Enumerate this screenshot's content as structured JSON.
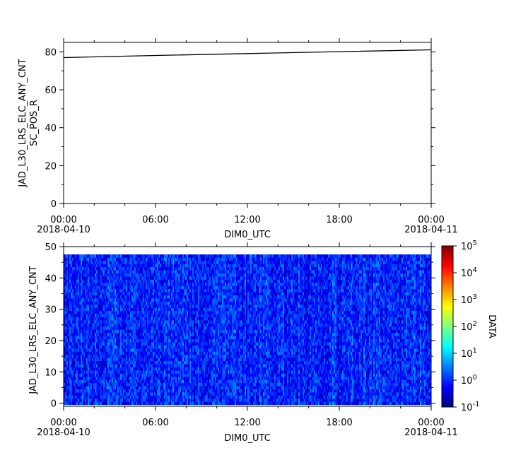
{
  "chart_data": [
    {
      "type": "line",
      "ylabel": [
        "JAD_L30_LRS_ELC_ANY_CNT",
        "SC_POS_R"
      ],
      "xlabel": "DIM0_UTC",
      "xlim": [
        "2018-04-10 00:00",
        "2018-04-11 00:00"
      ],
      "ylim": [
        0,
        85
      ],
      "grid": false,
      "x_ticks": [
        {
          "time": "00:00",
          "date": "2018-04-10"
        },
        {
          "time": "06:00",
          "date": ""
        },
        {
          "time": "12:00",
          "date": ""
        },
        {
          "time": "18:00",
          "date": ""
        },
        {
          "time": "00:00",
          "date": "2018-04-11"
        }
      ],
      "y_ticks": [
        "0",
        "20",
        "40",
        "60",
        "80"
      ],
      "series": [
        {
          "color": "#000000",
          "x": [
            "2018-04-10 00:00",
            "2018-04-10 06:00",
            "2018-04-10 12:00",
            "2018-04-10 18:00",
            "2018-04-11 00:00"
          ],
          "y": [
            77.0,
            78.1,
            79.1,
            80.1,
            81.1
          ]
        }
      ]
    },
    {
      "type": "heatmap",
      "ylabel": "JAD_L30_LRS_ELC_ANY_CNT",
      "xlabel": "DIM0_UTC",
      "xlim": [
        "2018-04-10 00:00",
        "2018-04-11 00:00"
      ],
      "ylim": [
        -1,
        50
      ],
      "y_bins": [
        0,
        47
      ],
      "grid": false,
      "x_ticks": [
        {
          "time": "00:00",
          "date": "2018-04-10"
        },
        {
          "time": "06:00",
          "date": ""
        },
        {
          "time": "12:00",
          "date": ""
        },
        {
          "time": "18:00",
          "date": ""
        },
        {
          "time": "00:00",
          "date": "2018-04-11"
        }
      ],
      "y_ticks": [
        "0",
        "10",
        "20",
        "30",
        "40",
        "50"
      ],
      "color_scale": "log",
      "value_range": [
        0.1,
        100000
      ],
      "typical_values": [
        0.3,
        3
      ],
      "colorbar": {
        "label": "DATA",
        "ticks": [
          {
            "base": "10",
            "exp": "-1"
          },
          {
            "base": "10",
            "exp": "0"
          },
          {
            "base": "10",
            "exp": "1"
          },
          {
            "base": "10",
            "exp": "2"
          },
          {
            "base": "10",
            "exp": "3"
          },
          {
            "base": "10",
            "exp": "4"
          },
          {
            "base": "10",
            "exp": "5"
          }
        ],
        "colors": [
          "#00007f",
          "#0000ff",
          "#007fff",
          "#00ffff",
          "#7fff7f",
          "#ffff00",
          "#ff7f00",
          "#ff0000",
          "#7f0000"
        ]
      }
    }
  ]
}
